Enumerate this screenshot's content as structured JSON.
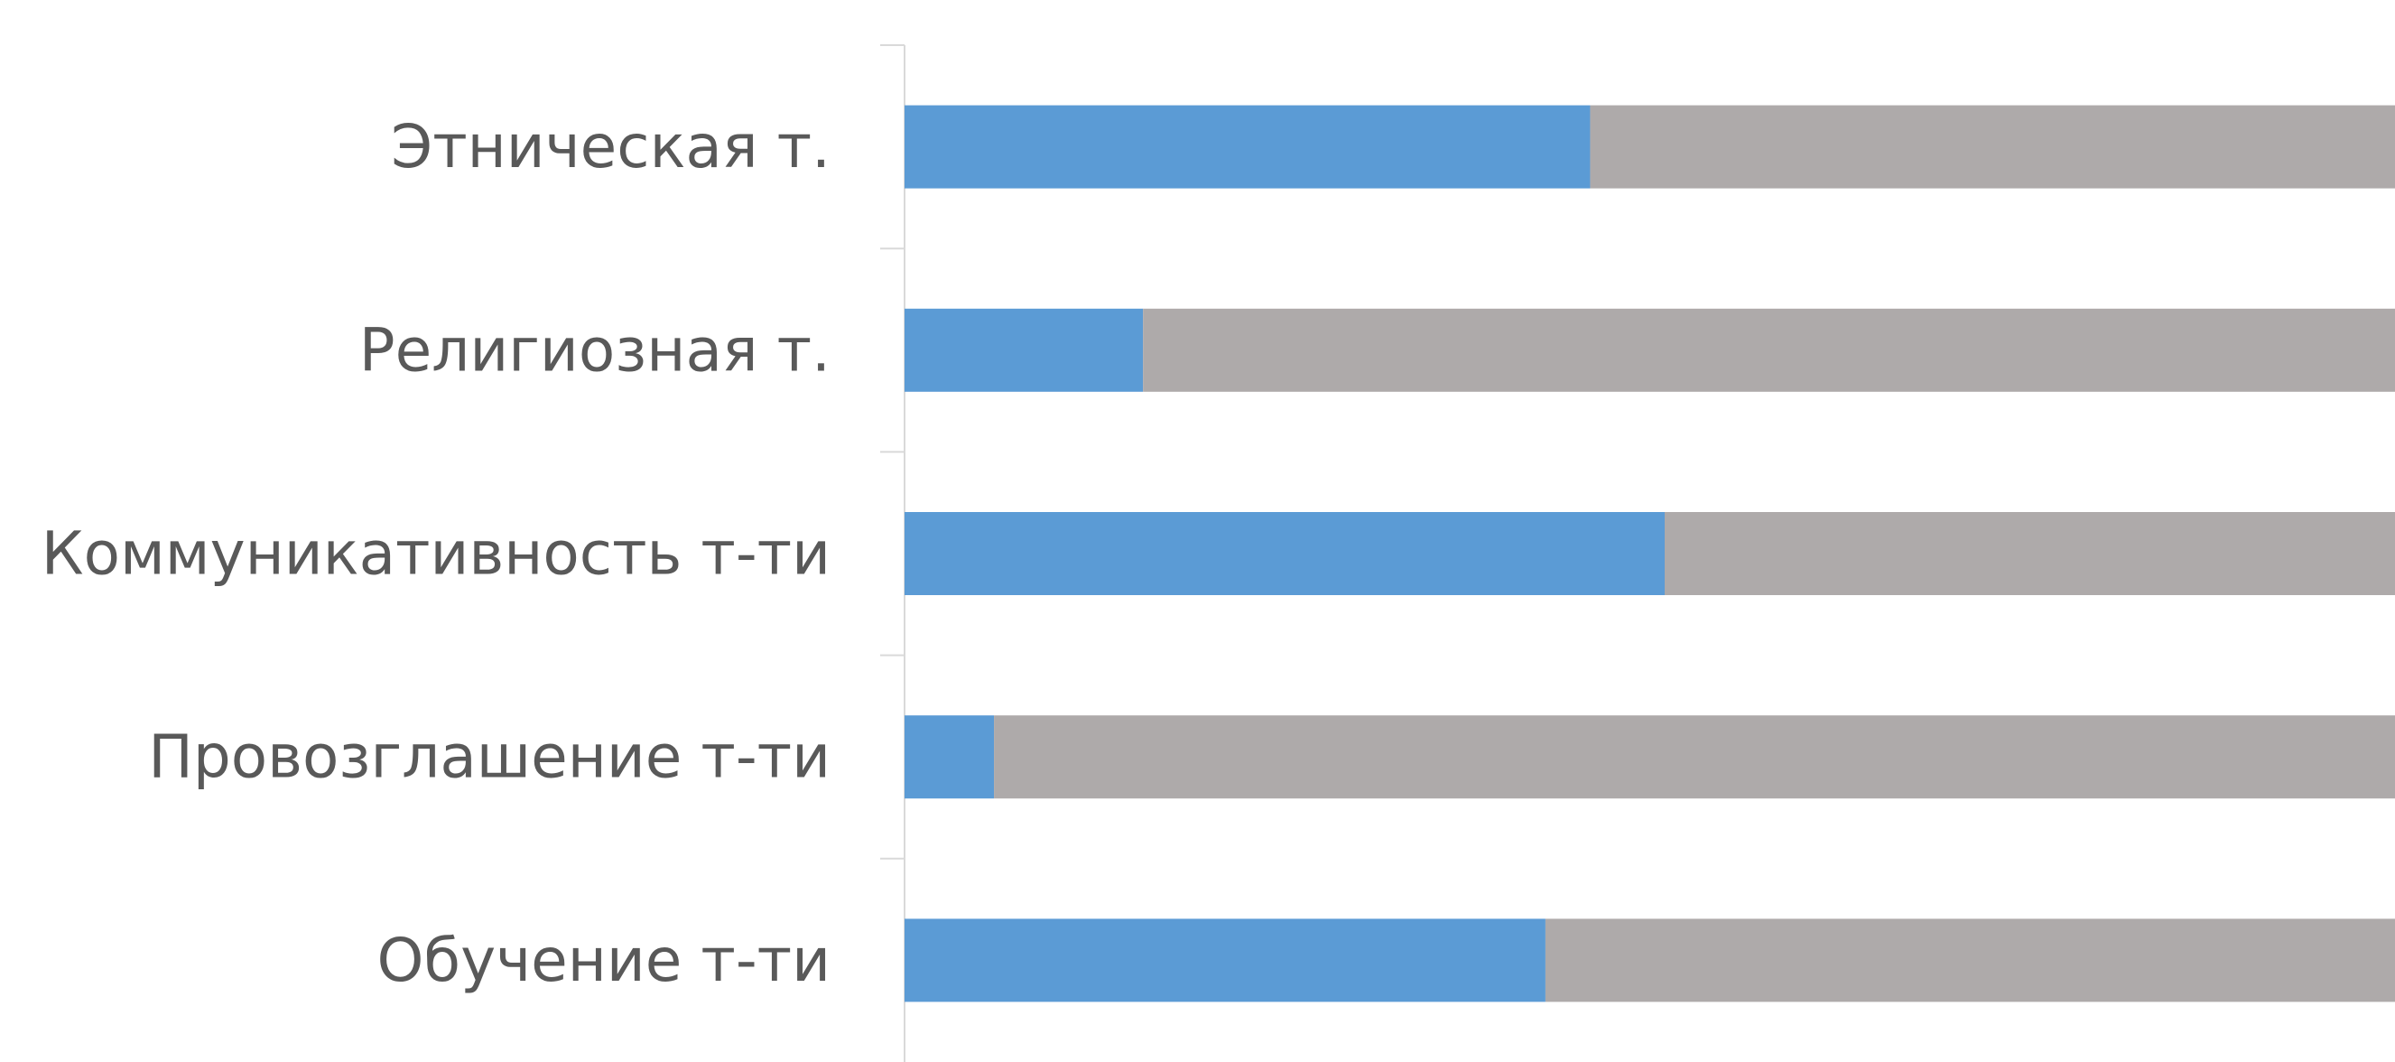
{
  "chart_data": {
    "type": "bar",
    "orientation": "horizontal",
    "stacked": true,
    "title": "",
    "xlabel": "",
    "ylabel": "",
    "categories": [
      "Этническая т.",
      "Религиозная т.",
      "Коммуникативность т-ти",
      "Провозглашение т-ти",
      "Обучение т-ти"
    ],
    "series": [
      {
        "color": "#5b9bd5",
        "values": [
          46,
          16,
          51,
          6,
          43
        ]
      },
      {
        "color": "#aeaaaa",
        "values": [
          54,
          84,
          49,
          94,
          57
        ]
      }
    ],
    "xlim": [
      0,
      100
    ],
    "grid": false,
    "legend": "none"
  }
}
